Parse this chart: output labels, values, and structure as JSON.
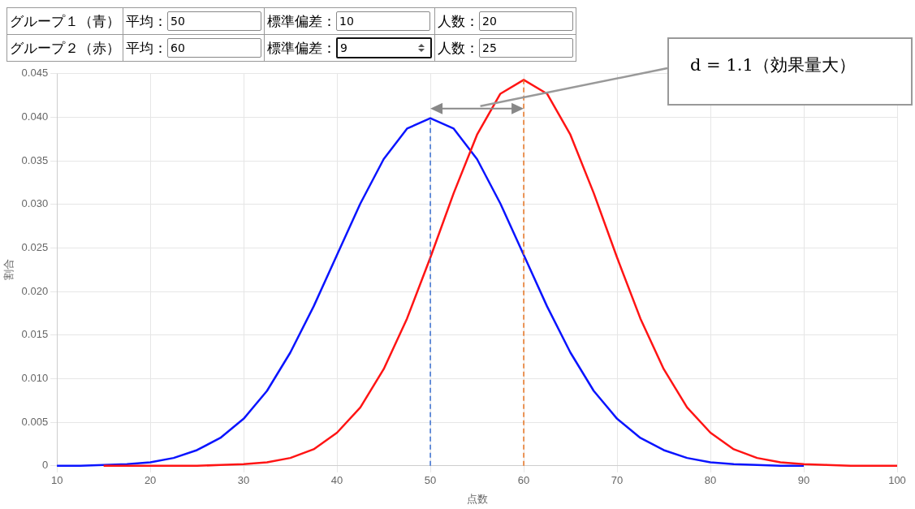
{
  "chart_data": {
    "type": "line",
    "xlabel": "点数",
    "ylabel": "割合",
    "x": [
      10,
      12.5,
      15,
      17.5,
      20,
      22.5,
      25,
      27.5,
      30,
      32.5,
      35,
      37.5,
      40,
      42.5,
      45,
      47.5,
      50,
      52.5,
      55,
      57.5,
      60,
      62.5,
      65,
      67.5,
      70,
      72.5,
      75,
      77.5,
      80,
      82.5,
      85,
      87.5,
      90,
      92.5,
      95,
      97.5,
      100
    ],
    "series": [
      {
        "color": "#0a14ff",
        "values": [
          0,
          0,
          0.0001,
          0.0002,
          0.0004,
          0.0009,
          0.0018,
          0.0032,
          0.0054,
          0.0086,
          0.013,
          0.0183,
          0.0242,
          0.0301,
          0.0352,
          0.0387,
          0.0399,
          0.0387,
          0.0352,
          0.0301,
          0.0242,
          0.0183,
          0.013,
          0.0086,
          0.0054,
          0.0032,
          0.0018,
          0.0009,
          0.0004,
          0.0002,
          0.0001,
          0,
          0,
          null,
          null,
          null,
          null
        ]
      },
      {
        "color": "#ff1414",
        "values": [
          null,
          null,
          0,
          0,
          0,
          0,
          0,
          0.0001,
          0.0002,
          0.0004,
          0.0009,
          0.0019,
          0.0038,
          0.0067,
          0.0111,
          0.0169,
          0.0239,
          0.0313,
          0.038,
          0.0427,
          0.0443,
          0.0427,
          0.038,
          0.0313,
          0.0239,
          0.0169,
          0.0111,
          0.0067,
          0.0038,
          0.0019,
          0.0009,
          0.0004,
          0.0002,
          0.0001,
          0,
          0,
          0
        ]
      }
    ],
    "xlim": [
      10,
      100
    ],
    "xticks": [
      10,
      20,
      30,
      40,
      50,
      60,
      70,
      80,
      90,
      100
    ],
    "ylim": [
      0,
      0.045
    ],
    "yticks": [
      {
        "value": 0,
        "label": "0"
      },
      0.005,
      {
        "value": 0.01,
        "label": "0.010"
      },
      0.015,
      {
        "value": 0.02,
        "label": "0.020"
      },
      0.025,
      {
        "value": 0.03,
        "label": "0.030"
      },
      0.035,
      {
        "value": 0.04,
        "label": "0.040"
      },
      0.045
    ],
    "ref_lines": [
      {
        "axis": "x",
        "value": 50,
        "color": "#3a6fd0",
        "line_style": "dashed"
      },
      {
        "axis": "x",
        "value": 60,
        "color": "#e57320",
        "line_style": "dashed"
      }
    ],
    "annotations": [
      "グループ１（青）",
      "平均：",
      "50",
      "標準偏差：",
      "10",
      "人数：",
      "20",
      "グループ２（赤）",
      "平均：",
      "60",
      "標準偏差：",
      "9",
      "人数：",
      "25",
      "d = 1.1（効果量大）"
    ],
    "grid": true,
    "legend": false,
    "marker": "none",
    "line_style": "solid"
  }
}
